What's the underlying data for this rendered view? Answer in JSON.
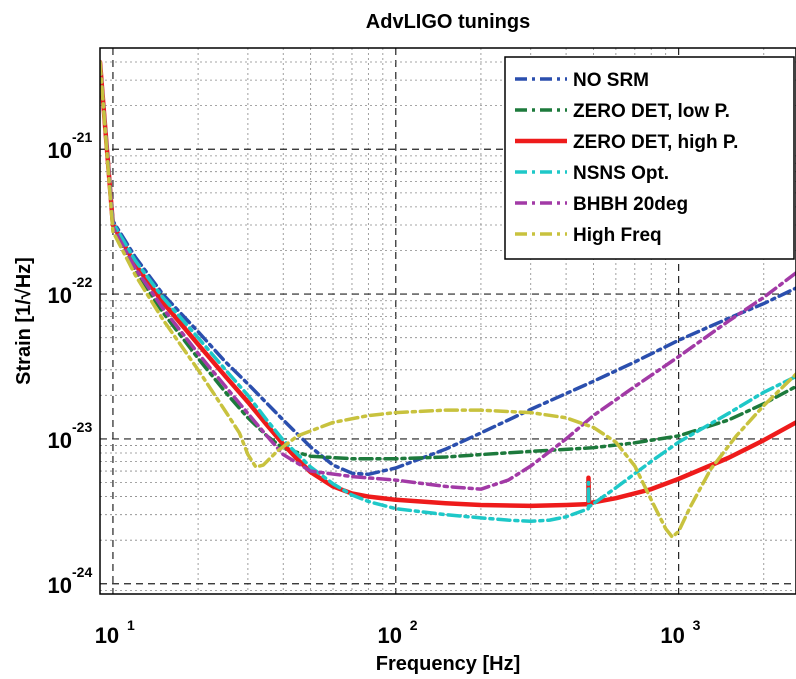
{
  "chart_data": {
    "type": "line",
    "title": "AdvLIGO tunings",
    "xlabel": "Frequency [Hz]",
    "ylabel": "Strain [1/√Hz]",
    "x_scale": "log",
    "y_scale": "log",
    "xlim": [
      9,
      2600
    ],
    "ylim": [
      8.5e-25,
      5e-21
    ],
    "grid": "on",
    "legend_position": "top-right",
    "x_ticks": [
      {
        "base": "10",
        "exp": "1",
        "value": 10
      },
      {
        "base": "10",
        "exp": "2",
        "value": 100
      },
      {
        "base": "10",
        "exp": "3",
        "value": 1000
      }
    ],
    "y_ticks": [
      {
        "base": "10",
        "exp": "-21",
        "value": 1e-21
      },
      {
        "base": "10",
        "exp": "-22",
        "value": 1e-22
      },
      {
        "base": "10",
        "exp": "-23",
        "value": 1e-23
      },
      {
        "base": "10",
        "exp": "-24",
        "value": 1e-24
      }
    ],
    "series": [
      {
        "name": "NO SRM",
        "color": "#2b4fae",
        "style": "dashdot",
        "width": 3.5,
        "points": [
          [
            9,
            4e-21
          ],
          [
            10,
            3.2e-22
          ],
          [
            12,
            1.8e-22
          ],
          [
            15,
            1e-22
          ],
          [
            20,
            5.5e-23
          ],
          [
            25,
            3.4e-23
          ],
          [
            30,
            2.4e-23
          ],
          [
            40,
            1.35e-23
          ],
          [
            50,
            8.8e-24
          ],
          [
            60,
            6.6e-24
          ],
          [
            70,
            5.8e-24
          ],
          [
            80,
            5.7e-24
          ],
          [
            100,
            6.3e-24
          ],
          [
            150,
            8.5e-24
          ],
          [
            200,
            1.1e-23
          ],
          [
            300,
            1.6e-23
          ],
          [
            500,
            2.5e-23
          ],
          [
            700,
            3.4e-23
          ],
          [
            1000,
            4.8e-23
          ],
          [
            1500,
            6.8e-23
          ],
          [
            2000,
            8.6e-23
          ],
          [
            2600,
            1.1e-22
          ]
        ]
      },
      {
        "name": "ZERO DET, low P.",
        "color": "#1d7a3c",
        "style": "dashdot",
        "width": 3.5,
        "points": [
          [
            9,
            4e-21
          ],
          [
            10,
            2.8e-22
          ],
          [
            12,
            1.45e-22
          ],
          [
            15,
            7.5e-23
          ],
          [
            20,
            3.6e-23
          ],
          [
            25,
            2.1e-23
          ],
          [
            30,
            1.4e-23
          ],
          [
            35,
            1.05e-23
          ],
          [
            40,
            8.6e-24
          ],
          [
            50,
            7.6e-24
          ],
          [
            70,
            7.3e-24
          ],
          [
            100,
            7.3e-24
          ],
          [
            150,
            7.5e-24
          ],
          [
            200,
            7.8e-24
          ],
          [
            300,
            8.2e-24
          ],
          [
            500,
            8.7e-24
          ],
          [
            700,
            9.4e-24
          ],
          [
            1000,
            1.05e-23
          ],
          [
            1500,
            1.35e-23
          ],
          [
            2000,
            1.75e-23
          ],
          [
            2600,
            2.3e-23
          ]
        ]
      },
      {
        "name": "ZERO DET, high P.",
        "color": "#ee1b1b",
        "style": "solid",
        "width": 4.5,
        "points": [
          [
            9,
            4e-21
          ],
          [
            10,
            3e-22
          ],
          [
            12,
            1.6e-22
          ],
          [
            15,
            8.8e-23
          ],
          [
            20,
            4.5e-23
          ],
          [
            25,
            2.7e-23
          ],
          [
            30,
            1.8e-23
          ],
          [
            35,
            1.25e-23
          ],
          [
            40,
            9.2e-24
          ],
          [
            45,
            7.2e-24
          ],
          [
            50,
            5.9e-24
          ],
          [
            60,
            4.7e-24
          ],
          [
            70,
            4.2e-24
          ],
          [
            80,
            4e-24
          ],
          [
            100,
            3.8e-24
          ],
          [
            150,
            3.6e-24
          ],
          [
            200,
            3.5e-24
          ],
          [
            300,
            3.45e-24
          ],
          [
            400,
            3.5e-24
          ],
          [
            480,
            3.55e-24
          ],
          [
            480,
            5.4e-24
          ],
          [
            482,
            3.6e-24
          ],
          [
            600,
            3.9e-24
          ],
          [
            800,
            4.5e-24
          ],
          [
            1000,
            5.3e-24
          ],
          [
            1500,
            7.4e-24
          ],
          [
            2000,
            9.8e-24
          ],
          [
            2600,
            1.3e-23
          ]
        ]
      },
      {
        "name": "NSNS Opt.",
        "color": "#1ec8c8",
        "style": "dashdot",
        "width": 3.5,
        "points": [
          [
            9,
            4e-21
          ],
          [
            10,
            3.1e-22
          ],
          [
            12,
            1.7e-22
          ],
          [
            15,
            9.5e-23
          ],
          [
            20,
            5e-23
          ],
          [
            25,
            3e-23
          ],
          [
            30,
            2e-23
          ],
          [
            35,
            1.35e-23
          ],
          [
            40,
            9.8e-24
          ],
          [
            50,
            6.4e-24
          ],
          [
            60,
            4.9e-24
          ],
          [
            70,
            4.1e-24
          ],
          [
            80,
            3.7e-24
          ],
          [
            100,
            3.3e-24
          ],
          [
            150,
            3e-24
          ],
          [
            200,
            2.85e-24
          ],
          [
            250,
            2.75e-24
          ],
          [
            300,
            2.7e-24
          ],
          [
            350,
            2.75e-24
          ],
          [
            400,
            2.9e-24
          ],
          [
            460,
            3.2e-24
          ],
          [
            480,
            3.3e-24
          ],
          [
            480,
            5e-24
          ],
          [
            482,
            3.4e-24
          ],
          [
            600,
            4.6e-24
          ],
          [
            800,
            7e-24
          ],
          [
            1000,
            9.5e-24
          ],
          [
            1500,
            1.5e-23
          ],
          [
            2000,
            2.1e-23
          ],
          [
            2600,
            2.7e-23
          ]
        ]
      },
      {
        "name": "BHBH 20deg",
        "color": "#a23aa6",
        "style": "dashdot",
        "width": 3.5,
        "points": [
          [
            9,
            4e-21
          ],
          [
            10,
            2.9e-22
          ],
          [
            12,
            1.5e-22
          ],
          [
            15,
            8e-23
          ],
          [
            20,
            3.9e-23
          ],
          [
            25,
            2.3e-23
          ],
          [
            30,
            1.5e-23
          ],
          [
            35,
            1.05e-23
          ],
          [
            40,
            7.8e-24
          ],
          [
            50,
            6e-24
          ],
          [
            70,
            5.5e-24
          ],
          [
            100,
            5.2e-24
          ],
          [
            150,
            4.7e-24
          ],
          [
            200,
            4.5e-24
          ],
          [
            250,
            5.2e-24
          ],
          [
            300,
            6.5e-24
          ],
          [
            400,
            1e-23
          ],
          [
            500,
            1.45e-23
          ],
          [
            700,
            2.3e-23
          ],
          [
            1000,
            3.7e-23
          ],
          [
            1500,
            6.5e-23
          ],
          [
            2000,
            9.5e-23
          ],
          [
            2600,
            1.4e-22
          ]
        ]
      },
      {
        "name": "High Freq",
        "color": "#c8c23e",
        "style": "dashdot",
        "width": 3.5,
        "points": [
          [
            9,
            4e-21
          ],
          [
            10,
            2.7e-22
          ],
          [
            12,
            1.35e-22
          ],
          [
            15,
            6.7e-23
          ],
          [
            20,
            3e-23
          ],
          [
            25,
            1.55e-23
          ],
          [
            28,
            1.1e-23
          ],
          [
            30,
            7.8e-24
          ],
          [
            32,
            6.4e-24
          ],
          [
            34,
            6.6e-24
          ],
          [
            38,
            8.2e-24
          ],
          [
            45,
            1.05e-23
          ],
          [
            60,
            1.3e-23
          ],
          [
            80,
            1.45e-23
          ],
          [
            100,
            1.52e-23
          ],
          [
            150,
            1.58e-23
          ],
          [
            200,
            1.58e-23
          ],
          [
            300,
            1.52e-23
          ],
          [
            400,
            1.4e-23
          ],
          [
            500,
            1.2e-23
          ],
          [
            600,
            9.5e-24
          ],
          [
            700,
            6.5e-24
          ],
          [
            800,
            3.8e-24
          ],
          [
            900,
            2.4e-24
          ],
          [
            950,
            2.1e-24
          ],
          [
            1000,
            2.3e-24
          ],
          [
            1100,
            3.4e-24
          ],
          [
            1300,
            6.2e-24
          ],
          [
            1600,
            1.05e-23
          ],
          [
            2000,
            1.7e-23
          ],
          [
            2600,
            2.8e-23
          ],
          [
            2800,
            3.3e-23
          ]
        ]
      }
    ]
  }
}
